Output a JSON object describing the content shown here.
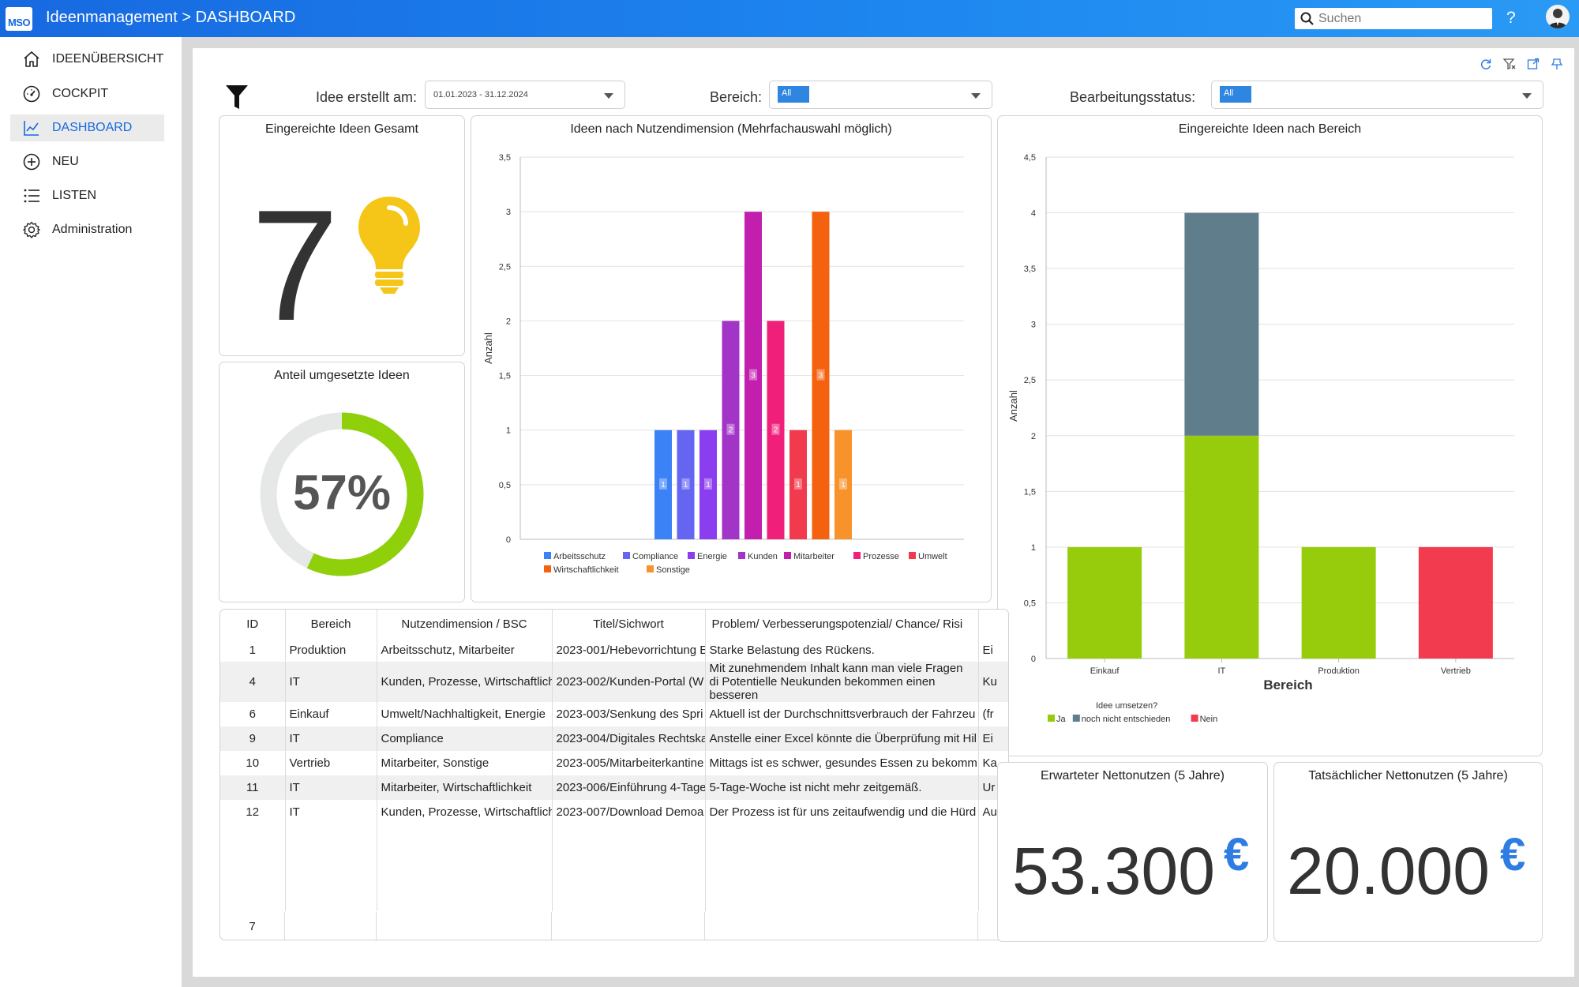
{
  "header": {
    "logo_text": "MSO",
    "title": "Ideenmanagement > DASHBOARD",
    "search_placeholder": "Suchen",
    "help_label": "?"
  },
  "sidebar": {
    "items": [
      {
        "label": "IDEENÜBERSICHT",
        "icon": "home-icon",
        "active": false
      },
      {
        "label": "COCKPIT",
        "icon": "gauge-icon",
        "active": false
      },
      {
        "label": "DASHBOARD",
        "icon": "line-chart-icon",
        "active": true
      },
      {
        "label": "NEU",
        "icon": "plus-circle-icon",
        "active": false
      },
      {
        "label": "LISTEN",
        "icon": "list-icon",
        "active": false
      },
      {
        "label": "Administration",
        "icon": "gear-icon",
        "active": false
      }
    ]
  },
  "filters": {
    "date_label": "Idee erstellt am:",
    "date_value": "01.01.2023 - 31.12.2024",
    "area_label": "Bereich:",
    "area_value": "All",
    "status_label": "Bearbeitungsstatus:",
    "status_value": "All"
  },
  "kpi": {
    "total_title": "Eingereichte Ideen Gesamt",
    "total_value": "7",
    "share_title": "Anteil umgesetzte Ideen",
    "share_value": "57%",
    "share_fraction": 0.57,
    "expected_title": "Erwarteter Nettonutzen (5 Jahre)",
    "expected_value": "53.300",
    "actual_title": "Tatsächlicher Nettonutzen (5 Jahre)",
    "actual_value": "20.000",
    "currency": "€"
  },
  "colors": {
    "accent": "#1769e0",
    "bulb": "#f5c518",
    "donut_fill": "#8fd00a",
    "donut_track": "#e6e8e8"
  },
  "chart_data": [
    {
      "type": "bar",
      "title": "Ideen nach Nutzendimension (Mehrfachauswahl möglich)",
      "ylabel": "Anzahl",
      "xlabel": "",
      "ylim": [
        0,
        3.5
      ],
      "yticks": [
        "0",
        "0,5",
        "1",
        "1,5",
        "2",
        "2,5",
        "3",
        "3,5"
      ],
      "grid": true,
      "legend_position": "bottom",
      "series": [
        {
          "name": "Arbeitsschutz",
          "value": 1,
          "color": "#3b82f6"
        },
        {
          "name": "Compliance",
          "value": 1,
          "color": "#6466f1"
        },
        {
          "name": "Energie",
          "value": 1,
          "color": "#8b3ef0"
        },
        {
          "name": "Kunden",
          "value": 2,
          "color": "#a234c8"
        },
        {
          "name": "Mitarbeiter",
          "value": 3,
          "color": "#c21fae"
        },
        {
          "name": "Prozesse",
          "value": 2,
          "color": "#f01f7a"
        },
        {
          "name": "Umwelt",
          "value": 1,
          "color": "#f23a4e"
        },
        {
          "name": "Wirtschaftlichkeit",
          "value": 3,
          "color": "#f5620f"
        },
        {
          "name": "Sonstige",
          "value": 1,
          "color": "#f8922a"
        }
      ]
    },
    {
      "type": "bar",
      "stacked": true,
      "title": "Eingereichte Ideen nach Bereich",
      "ylabel": "Anzahl",
      "xlabel": "Bereich",
      "ylim": [
        0,
        4.5
      ],
      "yticks": [
        "0",
        "0,5",
        "1",
        "1,5",
        "2",
        "2,5",
        "3",
        "3,5",
        "4",
        "4,5"
      ],
      "grid": true,
      "legend_title": "Idee umsetzen?",
      "legend_position": "bottom-left",
      "categories": [
        "Einkauf",
        "IT",
        "Produktion",
        "Vertrieb"
      ],
      "series": [
        {
          "name": "Ja",
          "values": [
            1,
            2,
            1,
            0
          ],
          "color": "#96cc0b"
        },
        {
          "name": "noch nicht entschieden",
          "values": [
            0,
            2,
            0,
            0
          ],
          "color": "#607d8b"
        },
        {
          "name": "Nein",
          "values": [
            0,
            0,
            0,
            1
          ],
          "color": "#f23b4f"
        }
      ]
    }
  ],
  "table": {
    "columns": [
      "ID",
      "Bereich",
      "Nutzendimension / BSC",
      "Titel/Sichwort",
      "Problem/ Verbesserungspotenzial/ Chance/ Risi",
      ""
    ],
    "rows": [
      {
        "id": "1",
        "bereich": "Produktion",
        "nutzen": "Arbeitsschutz, Mitarbeiter",
        "titel": "2023-001/Hebevorrichtung E",
        "problem": "Starke Belastung des Rückens.",
        "extra": "Ei"
      },
      {
        "id": "4",
        "bereich": "IT",
        "nutzen": "Kunden, Prozesse, Wirtschaftlich",
        "titel": "2023-002/Kunden-Portal (W",
        "problem": "Mit zunehmendem Inhalt kann man viele Fragen di Potentielle Neukunden bekommen einen besseren",
        "extra": "Ku"
      },
      {
        "id": "6",
        "bereich": "Einkauf",
        "nutzen": "Umwelt/Nachhaltigkeit, Energie",
        "titel": "2023-003/Senkung des Spri",
        "problem": "Aktuell ist der Durchschnittsverbrauch der Fahrzeu",
        "extra": "(fr"
      },
      {
        "id": "9",
        "bereich": "IT",
        "nutzen": "Compliance",
        "titel": "2023-004/Digitales Rechtska",
        "problem": "Anstelle einer Excel könnte die Überprüfung mit Hil",
        "extra": "Ei"
      },
      {
        "id": "10",
        "bereich": "Vertrieb",
        "nutzen": "Mitarbeiter, Sonstige",
        "titel": "2023-005/Mitarbeiterkantine",
        "problem": "Mittags ist es schwer, gesundes Essen zu bekomm",
        "extra": "Ka"
      },
      {
        "id": "11",
        "bereich": "IT",
        "nutzen": "Mitarbeiter, Wirtschaftlichkeit",
        "titel": "2023-006/Einführung 4-Tage",
        "problem": "5-Tage-Woche ist nicht mehr zeitgemäß.",
        "extra": "Ur"
      },
      {
        "id": "12",
        "bereich": "IT",
        "nutzen": "Kunden, Prozesse, Wirtschaftlich",
        "titel": "2023-007/Download Demoa",
        "problem": "Der Prozess ist für uns zeitaufwendig und die Hürd",
        "extra": "Au"
      }
    ],
    "footer_count": "7"
  }
}
